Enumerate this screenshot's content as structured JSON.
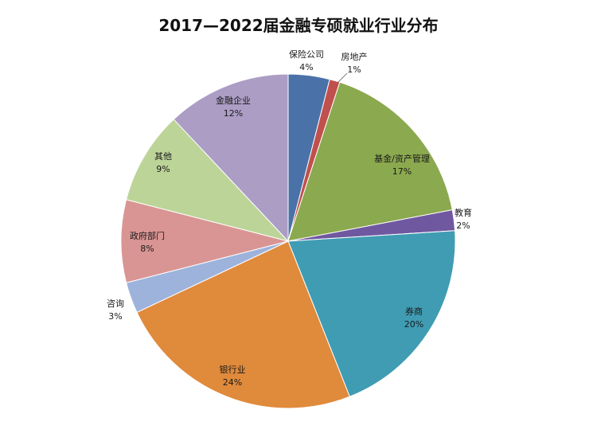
{
  "chart_data": {
    "type": "pie",
    "title": "2017—2022届金融专硕就业行业分布",
    "slices": [
      {
        "label": "保险公司",
        "value": 4,
        "pct_text": "4%",
        "color": "#4a72a8"
      },
      {
        "label": "房地产",
        "value": 1,
        "pct_text": "1%",
        "color": "#c0504d"
      },
      {
        "label": "基金/资产管理",
        "value": 17,
        "pct_text": "17%",
        "color": "#8ba94e"
      },
      {
        "label": "教育",
        "value": 2,
        "pct_text": "2%",
        "color": "#7058a0"
      },
      {
        "label": "券商",
        "value": 20,
        "pct_text": "20%",
        "color": "#3f9cb3"
      },
      {
        "label": "银行业",
        "value": 24,
        "pct_text": "24%",
        "color": "#e08a3c"
      },
      {
        "label": "咨询",
        "value": 3,
        "pct_text": "3%",
        "color": "#9db3dc"
      },
      {
        "label": "政府部门",
        "value": 8,
        "pct_text": "8%",
        "color": "#d99593"
      },
      {
        "label": "其他",
        "value": 9,
        "pct_text": "9%",
        "color": "#bcd498"
      },
      {
        "label": "金融企业",
        "value": 12,
        "pct_text": "12%",
        "color": "#ab9dc4"
      }
    ]
  }
}
